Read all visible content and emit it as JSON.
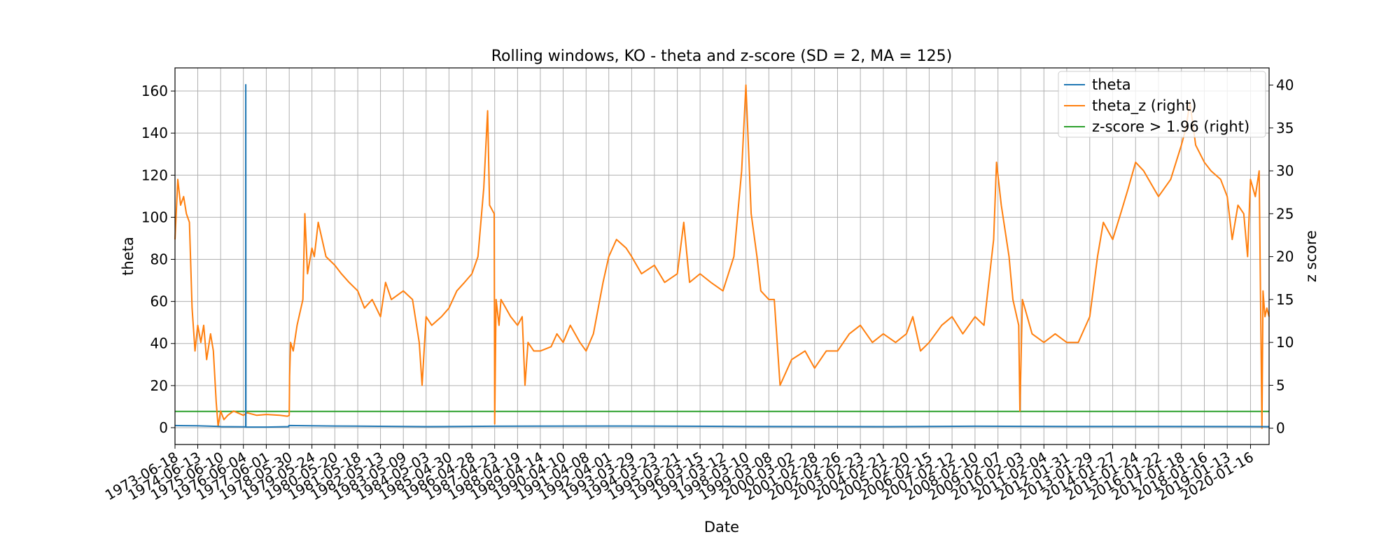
{
  "chart_data": {
    "type": "line",
    "title": "Rolling windows, KO - theta and z-score (SD = 2, MA = 125)",
    "xlabel": "Date",
    "ylabel": "theta",
    "ylabel_right": "z score",
    "ylim_left": [
      -8,
      171
    ],
    "ylim_right": [
      -1.9,
      42
    ],
    "yticks_left": [
      0,
      20,
      40,
      60,
      80,
      100,
      120,
      140,
      160
    ],
    "yticks_right": [
      0,
      5,
      10,
      15,
      20,
      25,
      30,
      35,
      40
    ],
    "xlim": [
      "1973-06-18",
      "2020-11-05"
    ],
    "x_tick_labels": [
      "1973-06-18",
      "1974-06-13",
      "1975-06-10",
      "1976-06-04",
      "1977-06-01",
      "1978-05-30",
      "1979-05-24",
      "1980-05-20",
      "1981-05-18",
      "1982-05-13",
      "1983-05-09",
      "1984-05-03",
      "1985-04-30",
      "1986-04-28",
      "1987-04-23",
      "1988-04-19",
      "1989-04-14",
      "1990-04-10",
      "1991-04-08",
      "1992-04-01",
      "1993-03-29",
      "1994-03-23",
      "1995-03-21",
      "1996-03-15",
      "1997-03-12",
      "1998-03-10",
      "1999-03-08",
      "2000-03-02",
      "2001-02-28",
      "2002-02-26",
      "2003-02-23",
      "2004-02-21",
      "2005-02-20",
      "2006-02-15",
      "2007-02-12",
      "2008-02-10",
      "2009-02-07",
      "2010-02-03",
      "2011-02-04",
      "2012-01-31",
      "2013-01-29",
      "2014-01-27",
      "2015-01-24",
      "2016-01-22",
      "2017-01-18",
      "2018-01-16",
      "2019-01-13",
      "2020-01-16"
    ],
    "grid": true,
    "legend_position": "top-right",
    "series": [
      {
        "name": "theta",
        "axis": "left",
        "color": "#1f77b4",
        "points": [
          [
            "1973-06-18",
            1.0
          ],
          [
            "1974-06-01",
            0.9
          ],
          [
            "1975-06-01",
            0.6
          ],
          [
            "1975-06-01",
            0.5
          ],
          [
            "1976-06-01",
            0.4
          ],
          [
            "1976-07-10",
            0.4
          ],
          [
            "1976-07-12",
            163
          ],
          [
            "1976-07-14",
            0.3
          ],
          [
            "1977-06-01",
            0.3
          ],
          [
            "1978-05-20",
            0.5
          ],
          [
            "1978-05-25",
            1.0
          ],
          [
            "1980-05-20",
            0.8
          ],
          [
            "1984-05-03",
            0.5
          ],
          [
            "1987-04-23",
            0.7
          ],
          [
            "1992-04-01",
            0.8
          ],
          [
            "1998-03-10",
            0.6
          ],
          [
            "2004-02-21",
            0.5
          ],
          [
            "2008-02-10",
            0.7
          ],
          [
            "2012-01-31",
            0.6
          ],
          [
            "2016-01-22",
            0.6
          ],
          [
            "2020-11-05",
            0.5
          ]
        ]
      },
      {
        "name": "theta_z (right)",
        "axis": "right",
        "color": "#ff7f0e",
        "points": [
          [
            "1973-06-18",
            22
          ],
          [
            "1973-08-01",
            29
          ],
          [
            "1973-09-15",
            26
          ],
          [
            "1973-11-01",
            27
          ],
          [
            "1973-12-15",
            25
          ],
          [
            "1974-02-01",
            24
          ],
          [
            "1974-03-15",
            14
          ],
          [
            "1974-05-01",
            9
          ],
          [
            "1974-06-13",
            12
          ],
          [
            "1974-08-01",
            10
          ],
          [
            "1974-09-15",
            12
          ],
          [
            "1974-11-01",
            8
          ],
          [
            "1975-01-01",
            11
          ],
          [
            "1975-02-15",
            9
          ],
          [
            "1975-04-01",
            3
          ],
          [
            "1975-05-01",
            0.2
          ],
          [
            "1975-06-10",
            2
          ],
          [
            "1975-08-01",
            1
          ],
          [
            "1975-10-01",
            1.5
          ],
          [
            "1976-01-01",
            2
          ],
          [
            "1976-06-04",
            1.5
          ],
          [
            "1976-08-01",
            1.8
          ],
          [
            "1977-01-01",
            1.5
          ],
          [
            "1977-06-01",
            1.6
          ],
          [
            "1978-01-01",
            1.5
          ],
          [
            "1978-05-01",
            1.4
          ],
          [
            "1978-05-30",
            1.5
          ],
          [
            "1978-06-05",
            6
          ],
          [
            "1978-06-20",
            10
          ],
          [
            "1978-08-01",
            9
          ],
          [
            "1978-10-01",
            12
          ],
          [
            "1979-01-01",
            15
          ],
          [
            "1979-02-01",
            25
          ],
          [
            "1979-03-15",
            18
          ],
          [
            "1979-05-24",
            21
          ],
          [
            "1979-07-01",
            20
          ],
          [
            "1979-09-01",
            24
          ],
          [
            "1980-01-01",
            20
          ],
          [
            "1980-05-20",
            19
          ],
          [
            "1980-09-01",
            18
          ],
          [
            "1981-01-01",
            17
          ],
          [
            "1981-05-18",
            16
          ],
          [
            "1981-09-01",
            14
          ],
          [
            "1982-01-01",
            15
          ],
          [
            "1982-05-13",
            13
          ],
          [
            "1982-08-01",
            17
          ],
          [
            "1982-11-01",
            15
          ],
          [
            "1983-05-09",
            16
          ],
          [
            "1983-10-01",
            15
          ],
          [
            "1984-01-15",
            10
          ],
          [
            "1984-03-01",
            5
          ],
          [
            "1984-05-03",
            13
          ],
          [
            "1984-08-01",
            12
          ],
          [
            "1985-01-01",
            13
          ],
          [
            "1985-04-30",
            14
          ],
          [
            "1985-09-01",
            16
          ],
          [
            "1986-01-01",
            17
          ],
          [
            "1986-04-28",
            18
          ],
          [
            "1986-08-01",
            20
          ],
          [
            "1986-11-01",
            28
          ],
          [
            "1987-01-01",
            37
          ],
          [
            "1987-02-01",
            26
          ],
          [
            "1987-04-15",
            25
          ],
          [
            "1987-04-23",
            0.5
          ],
          [
            "1987-05-15",
            15
          ],
          [
            "1987-07-01",
            12
          ],
          [
            "1987-08-01",
            15
          ],
          [
            "1988-01-01",
            13
          ],
          [
            "1988-04-19",
            12
          ],
          [
            "1988-07-01",
            13
          ],
          [
            "1988-08-15",
            5
          ],
          [
            "1988-10-01",
            10
          ],
          [
            "1989-01-01",
            9
          ],
          [
            "1989-04-14",
            9
          ],
          [
            "1989-10-01",
            9.5
          ],
          [
            "1990-01-01",
            11
          ],
          [
            "1990-04-10",
            10
          ],
          [
            "1990-08-01",
            12
          ],
          [
            "1991-01-01",
            10
          ],
          [
            "1991-04-08",
            9
          ],
          [
            "1991-08-01",
            11
          ],
          [
            "1992-01-01",
            17
          ],
          [
            "1992-04-01",
            20
          ],
          [
            "1992-08-01",
            22
          ],
          [
            "1993-01-01",
            21
          ],
          [
            "1993-03-29",
            20
          ],
          [
            "1993-09-01",
            18
          ],
          [
            "1994-03-23",
            19
          ],
          [
            "1994-09-01",
            17
          ],
          [
            "1995-03-21",
            18
          ],
          [
            "1995-07-01",
            24
          ],
          [
            "1995-10-01",
            17
          ],
          [
            "1996-03-15",
            18
          ],
          [
            "1996-09-01",
            17
          ],
          [
            "1997-03-12",
            16
          ],
          [
            "1997-09-01",
            20
          ],
          [
            "1998-01-01",
            30
          ],
          [
            "1998-03-10",
            40
          ],
          [
            "1998-06-01",
            25
          ],
          [
            "1998-09-01",
            20
          ],
          [
            "1998-11-01",
            16
          ],
          [
            "1999-03-08",
            15
          ],
          [
            "1999-06-01",
            15
          ],
          [
            "1999-09-01",
            5
          ],
          [
            "2000-03-02",
            8
          ],
          [
            "2000-10-01",
            9
          ],
          [
            "2001-02-28",
            7
          ],
          [
            "2001-09-01",
            9
          ],
          [
            "2002-02-26",
            9
          ],
          [
            "2002-09-01",
            11
          ],
          [
            "2003-02-23",
            12
          ],
          [
            "2003-09-01",
            10
          ],
          [
            "2004-02-21",
            11
          ],
          [
            "2004-09-01",
            10
          ],
          [
            "2005-02-20",
            11
          ],
          [
            "2005-06-01",
            13
          ],
          [
            "2005-10-01",
            9
          ],
          [
            "2006-02-15",
            10
          ],
          [
            "2006-09-01",
            12
          ],
          [
            "2007-02-12",
            13
          ],
          [
            "2007-08-01",
            11
          ],
          [
            "2008-02-10",
            13
          ],
          [
            "2008-07-01",
            12
          ],
          [
            "2008-12-01",
            22
          ],
          [
            "2009-01-15",
            31
          ],
          [
            "2009-04-01",
            26
          ],
          [
            "2009-08-01",
            20
          ],
          [
            "2009-10-01",
            15
          ],
          [
            "2010-01-01",
            12
          ],
          [
            "2010-01-20",
            2
          ],
          [
            "2010-03-01",
            15
          ],
          [
            "2010-08-01",
            11
          ],
          [
            "2011-02-04",
            10
          ],
          [
            "2011-08-01",
            11
          ],
          [
            "2012-01-31",
            10
          ],
          [
            "2012-08-01",
            10
          ],
          [
            "2013-01-29",
            13
          ],
          [
            "2013-06-01",
            20
          ],
          [
            "2013-09-01",
            24
          ],
          [
            "2014-01-27",
            22
          ],
          [
            "2014-06-01",
            25
          ],
          [
            "2014-10-01",
            28
          ],
          [
            "2015-01-24",
            31
          ],
          [
            "2015-06-01",
            30
          ],
          [
            "2016-01-22",
            27
          ],
          [
            "2016-08-01",
            29
          ],
          [
            "2017-01-18",
            33
          ],
          [
            "2017-04-01",
            35
          ],
          [
            "2017-06-01",
            38
          ],
          [
            "2017-09-01",
            33
          ],
          [
            "2018-01-16",
            31
          ],
          [
            "2018-05-01",
            30
          ],
          [
            "2018-10-01",
            29
          ],
          [
            "2019-01-13",
            27
          ],
          [
            "2019-04-01",
            22
          ],
          [
            "2019-07-01",
            26
          ],
          [
            "2019-10-01",
            25
          ],
          [
            "2019-12-01",
            20
          ],
          [
            "2020-01-16",
            29
          ],
          [
            "2020-04-01",
            27
          ],
          [
            "2020-06-01",
            30
          ],
          [
            "2020-07-15",
            0
          ],
          [
            "2020-08-01",
            16
          ],
          [
            "2020-09-01",
            13
          ],
          [
            "2020-10-01",
            14
          ],
          [
            "2020-11-05",
            13
          ]
        ]
      },
      {
        "name": "z-score > 1.96 (right)",
        "axis": "right",
        "color": "#2ca02c",
        "points": [
          [
            "1973-06-18",
            1.96
          ],
          [
            "2020-11-05",
            1.96
          ]
        ]
      }
    ]
  }
}
